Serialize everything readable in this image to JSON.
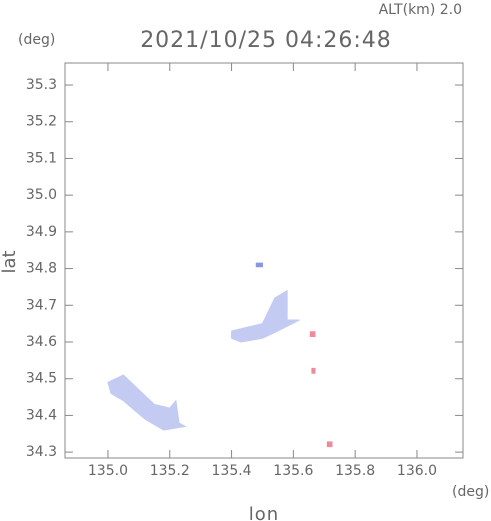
{
  "chart_data": {
    "type": "map",
    "annotation": "ALT(km) 2.0",
    "title": "2021/10/25 04:26:48",
    "y_unit": "(deg)",
    "x_unit": "(deg)",
    "ylabel": "lat",
    "xlabel": "lon",
    "xlim": [
      134.861,
      136.149
    ],
    "ylim": [
      34.284,
      35.36
    ],
    "xticks": [
      {
        "value": 135,
        "label": "135.0"
      },
      135.2,
      135.4,
      135.6,
      135.8,
      {
        "value": 136,
        "label": "136.0"
      }
    ],
    "yticks": [
      34.3,
      34.4,
      34.5,
      34.6,
      34.7,
      34.8,
      34.9,
      {
        "value": 35,
        "label": "35.0"
      },
      35.1,
      35.2,
      35.3
    ],
    "regions": [
      {
        "color": "#c4cbf3",
        "points": [
          [
            135.0,
            34.49
          ],
          [
            135.05,
            34.51
          ],
          [
            135.1,
            34.47
          ],
          [
            135.15,
            34.43
          ],
          [
            135.2,
            34.42
          ],
          [
            135.22,
            34.44
          ],
          [
            135.23,
            34.38
          ],
          [
            135.25,
            34.37
          ],
          [
            135.18,
            34.36
          ],
          [
            135.12,
            34.39
          ],
          [
            135.05,
            34.44
          ],
          [
            135.01,
            34.46
          ]
        ]
      },
      {
        "color": "#c4cbf3",
        "points": [
          [
            135.4,
            34.63
          ],
          [
            135.5,
            34.65
          ],
          [
            135.54,
            34.72
          ],
          [
            135.58,
            34.74
          ],
          [
            135.58,
            34.66
          ],
          [
            135.62,
            34.66
          ],
          [
            135.55,
            34.63
          ],
          [
            135.5,
            34.61
          ],
          [
            135.43,
            34.6
          ],
          [
            135.4,
            34.61
          ]
        ]
      },
      {
        "color": "#f08a9a",
        "points": [
          [
            135.71,
            34.315
          ],
          [
            135.725,
            34.315
          ],
          [
            135.725,
            34.328
          ],
          [
            135.71,
            34.328
          ]
        ]
      },
      {
        "color": "#f08a9a",
        "points": [
          [
            135.655,
            34.615
          ],
          [
            135.67,
            34.615
          ],
          [
            135.67,
            34.628
          ],
          [
            135.655,
            34.628
          ]
        ]
      },
      {
        "color": "#f08a9a",
        "points": [
          [
            135.66,
            34.515
          ],
          [
            135.67,
            34.515
          ],
          [
            135.67,
            34.528
          ],
          [
            135.66,
            34.528
          ]
        ]
      },
      {
        "color": "#8a96e0",
        "points": [
          [
            135.48,
            34.805
          ],
          [
            135.5,
            34.805
          ],
          [
            135.5,
            34.815
          ],
          [
            135.48,
            34.815
          ]
        ]
      }
    ]
  }
}
